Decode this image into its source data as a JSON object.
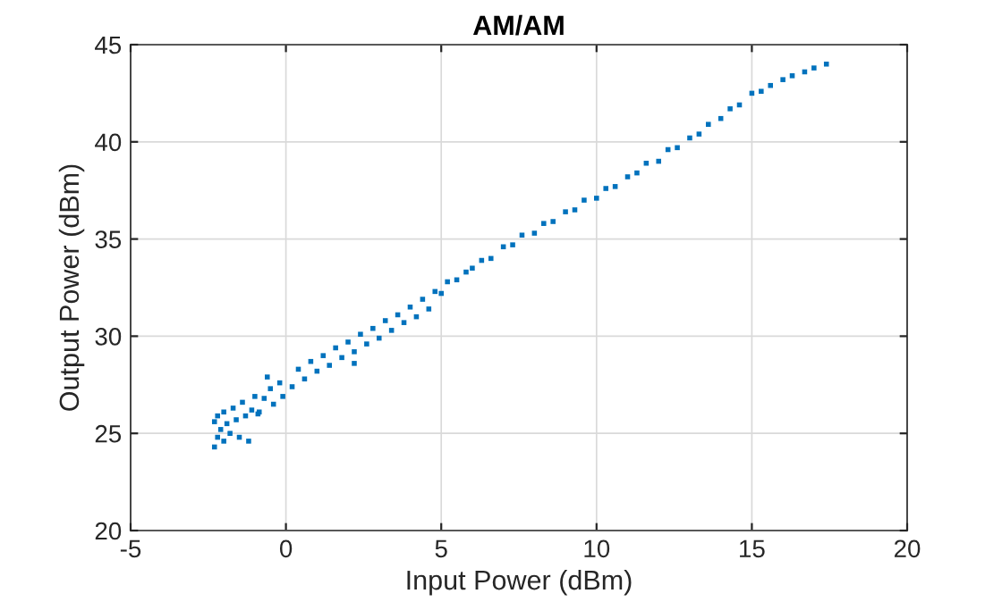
{
  "chart_data": {
    "type": "scatter",
    "title": "AM/AM",
    "xlabel": "Input Power (dBm)",
    "ylabel": "Output Power (dBm)",
    "x": [
      -2.3,
      -2.3,
      -2.2,
      -2.2,
      -2.1,
      -2.0,
      -2.0,
      -1.9,
      -1.8,
      -1.7,
      -1.6,
      -1.5,
      -1.4,
      -1.3,
      -1.2,
      -1.1,
      -1.0,
      -0.9,
      -0.86,
      -0.7,
      -0.6,
      -0.5,
      -0.4,
      -0.2,
      -0.1,
      0.2,
      0.4,
      0.6,
      0.8,
      1.0,
      1.2,
      1.4,
      1.6,
      1.8,
      2.0,
      2.2,
      2.2,
      2.4,
      2.6,
      2.8,
      3.0,
      3.2,
      3.4,
      3.6,
      3.8,
      4.0,
      4.2,
      4.4,
      4.6,
      4.8,
      5.0,
      5.2,
      5.5,
      5.8,
      6.0,
      6.3,
      6.6,
      7.0,
      7.3,
      7.6,
      8.0,
      8.3,
      8.6,
      9.0,
      9.3,
      9.6,
      10.0,
      10.3,
      10.6,
      11.0,
      11.3,
      11.6,
      12.0,
      12.3,
      12.6,
      13.0,
      13.3,
      13.6,
      14.0,
      14.3,
      14.6,
      15.0,
      15.3,
      15.6,
      16.0,
      16.3,
      16.7,
      17.0,
      17.4
    ],
    "series": [
      {
        "color": "#0072bd",
        "values": [
          24.3,
          25.6,
          24.8,
          25.9,
          25.2,
          24.6,
          26.1,
          25.5,
          25.0,
          26.3,
          25.7,
          24.8,
          26.6,
          25.9,
          24.6,
          26.2,
          26.9,
          26.0,
          26.1,
          26.8,
          27.9,
          27.3,
          26.5,
          27.6,
          26.9,
          27.4,
          28.3,
          27.8,
          28.7,
          28.2,
          29.0,
          28.5,
          29.4,
          28.9,
          29.7,
          29.2,
          28.6,
          30.1,
          29.6,
          30.4,
          29.9,
          30.8,
          30.3,
          31.1,
          30.7,
          31.5,
          31.0,
          31.9,
          31.4,
          32.3,
          32.2,
          32.8,
          32.9,
          33.3,
          33.5,
          33.9,
          34.0,
          34.6,
          34.7,
          35.2,
          35.3,
          35.8,
          35.9,
          36.4,
          36.5,
          37.0,
          37.1,
          37.6,
          37.7,
          38.2,
          38.4,
          38.9,
          39.0,
          39.6,
          39.7,
          40.2,
          40.4,
          40.9,
          41.2,
          41.7,
          41.9,
          42.5,
          42.6,
          42.9,
          43.2,
          43.4,
          43.6,
          43.8,
          44.0
        ]
      }
    ],
    "xlim": [
      -5,
      20
    ],
    "xticks": [
      -5,
      0,
      5,
      10,
      15,
      20
    ],
    "ylim": [
      20,
      45
    ],
    "yticks": [
      20,
      25,
      30,
      35,
      40,
      45
    ],
    "grid": true,
    "marker": "square"
  }
}
